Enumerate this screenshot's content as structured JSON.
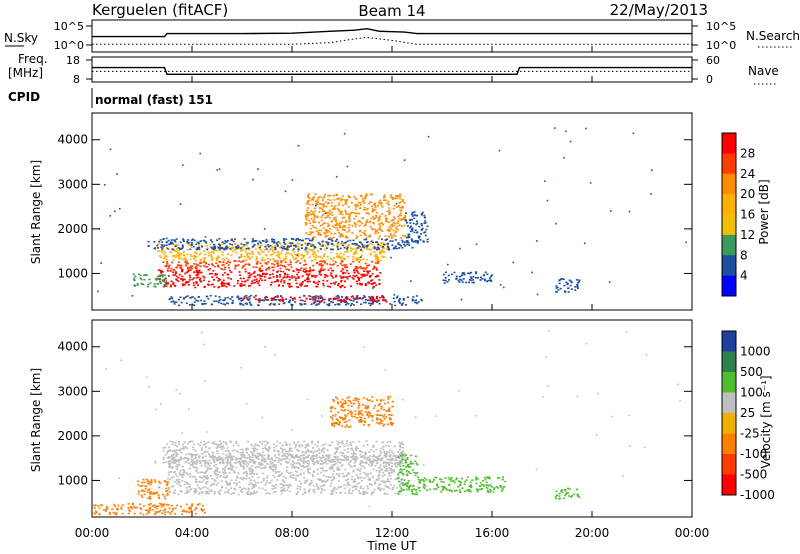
{
  "header": {
    "station": "Kerguelen (fitACF)",
    "beam": "Beam 14",
    "date": "22/May/2013"
  },
  "strip_labels": {
    "nsky": "N.Sky",
    "nsky_ticks": [
      "10^5",
      "10^0"
    ],
    "nsearch": "N.Search",
    "nsearch_ticks": [
      "10^5",
      "10^0"
    ],
    "freq_line1": "Freq.",
    "freq_line2": "[MHz]",
    "freq_ticks": [
      "18",
      "8"
    ],
    "nave": "Nave",
    "nave_ticks": [
      "60",
      "0"
    ],
    "cpid": "CPID",
    "cpid_value": "normal (fast) 151"
  },
  "axes": {
    "ylabel": "Slant Range [km]",
    "xlabel": "Time UT",
    "x_ticks": [
      "00:00",
      "04:00",
      "08:00",
      "12:00",
      "16:00",
      "20:00",
      "00:00"
    ],
    "y_ticks": [
      "1000",
      "2000",
      "3000",
      "4000"
    ]
  },
  "power_scale": {
    "label": "Power [dB]",
    "ticks": [
      "28",
      "24",
      "20",
      "16",
      "12",
      "8",
      "4"
    ],
    "colors": [
      "#ff0000",
      "#ff3b00",
      "#ff8c00",
      "#ffb000",
      "#f0c000",
      "#3c9a5a",
      "#1e50a0",
      "#0000ff"
    ]
  },
  "velocity_scale": {
    "label": "Velocity [m s⁻¹]",
    "ticks": [
      "1000",
      "500",
      "100",
      "25",
      "-25",
      "-100",
      "-500",
      "-1000"
    ],
    "colors": [
      "#1f3f9f",
      "#2f7f4f",
      "#4fbf2f",
      "#bfbfbf",
      "#f0b000",
      "#ff7f00",
      "#ff3b00",
      "#ff0000"
    ]
  },
  "chart_data": [
    {
      "type": "line",
      "title": "N.Sky / N.Search",
      "x_unit": "hours UT",
      "xlim": [
        0,
        24
      ],
      "series": [
        {
          "name": "N.Sky",
          "x": [
            0,
            2.9,
            3.0,
            6,
            8,
            9.5,
            10.5,
            11,
            11.5,
            12.5,
            13,
            24
          ],
          "values": [
            2.2,
            2.2,
            3.0,
            3.0,
            3.1,
            3.6,
            3.9,
            4.3,
            3.6,
            3.4,
            3.0,
            3.0
          ]
        },
        {
          "name": "N.Search",
          "x": [
            0,
            8,
            9.5,
            10.5,
            11,
            12,
            13,
            24
          ],
          "values": [
            0.2,
            0.2,
            0.6,
            1.6,
            2.0,
            1.2,
            0.2,
            0.2
          ]
        }
      ]
    },
    {
      "type": "line",
      "title": "Freq. / Nave",
      "x_unit": "hours UT",
      "xlim": [
        0,
        24
      ],
      "series": [
        {
          "name": "Freq.",
          "x": [
            0,
            2.9,
            3.0,
            17.0,
            17.1,
            24
          ],
          "values": [
            14,
            14,
            10.5,
            10.5,
            14,
            14
          ]
        },
        {
          "name": "Nave",
          "x": [
            0,
            24
          ],
          "values": [
            24,
            24
          ]
        }
      ]
    },
    {
      "type": "heatmap",
      "title": "Power [dB]",
      "x_unit": "hours UT",
      "xlim": [
        0,
        24
      ],
      "ylim": [
        180,
        4600
      ],
      "colorbar_ticks": [
        4,
        8,
        12,
        16,
        20,
        24,
        28
      ],
      "regions": [
        {
          "t0": 3.0,
          "t1": 13.2,
          "r0": 300,
          "r1": 520,
          "level": 4
        },
        {
          "t0": 6.0,
          "t1": 11.8,
          "r0": 380,
          "r1": 500,
          "level": 28
        },
        {
          "t0": 2.6,
          "t1": 11.5,
          "r0": 700,
          "r1": 1100,
          "level": 28
        },
        {
          "t0": 2.8,
          "t1": 11.5,
          "r0": 1100,
          "r1": 1300,
          "level": 24
        },
        {
          "t0": 2.6,
          "t1": 11.8,
          "r0": 1300,
          "r1": 1700,
          "level": 16
        },
        {
          "t0": 2.2,
          "t1": 12.8,
          "r0": 1550,
          "r1": 1800,
          "level": 8
        },
        {
          "t0": 8.5,
          "t1": 12.5,
          "r0": 1800,
          "r1": 2800,
          "level": 20
        },
        {
          "t0": 1.6,
          "t1": 3.0,
          "r0": 700,
          "r1": 1000,
          "level": 12
        },
        {
          "t0": 12.5,
          "t1": 13.4,
          "r0": 1700,
          "r1": 2400,
          "level": 4
        },
        {
          "t0": 14.0,
          "t1": 16.0,
          "r0": 800,
          "r1": 1050,
          "level": 8
        },
        {
          "t0": 18.5,
          "t1": 19.5,
          "r0": 600,
          "r1": 900,
          "level": 8
        }
      ]
    },
    {
      "type": "heatmap",
      "title": "Velocity [m s⁻¹]",
      "x_unit": "hours UT",
      "xlim": [
        0,
        24
      ],
      "ylim": [
        180,
        4600
      ],
      "colorbar_ticks": [
        -1000,
        -500,
        -100,
        -25,
        25,
        100,
        500,
        1000
      ],
      "regions": [
        {
          "t0": 3.0,
          "t1": 12.5,
          "r0": 700,
          "r1": 1600,
          "level": 0
        },
        {
          "t0": 2.8,
          "t1": 12.5,
          "r0": 1400,
          "r1": 1900,
          "level": 0
        },
        {
          "t0": 1.8,
          "t1": 3.0,
          "r0": 600,
          "r1": 1050,
          "level": -100
        },
        {
          "t0": 12.2,
          "t1": 13.0,
          "r0": 700,
          "r1": 1600,
          "level": 100
        },
        {
          "t0": 13.0,
          "t1": 16.5,
          "r0": 750,
          "r1": 1100,
          "level": 100
        },
        {
          "t0": 0.0,
          "t1": 4.5,
          "r0": 250,
          "r1": 500,
          "level": -100
        },
        {
          "t0": 9.5,
          "t1": 12.0,
          "r0": 2200,
          "r1": 2900,
          "level": -100
        },
        {
          "t0": 18.5,
          "t1": 19.5,
          "r0": 600,
          "r1": 850,
          "level": 100
        }
      ]
    }
  ]
}
